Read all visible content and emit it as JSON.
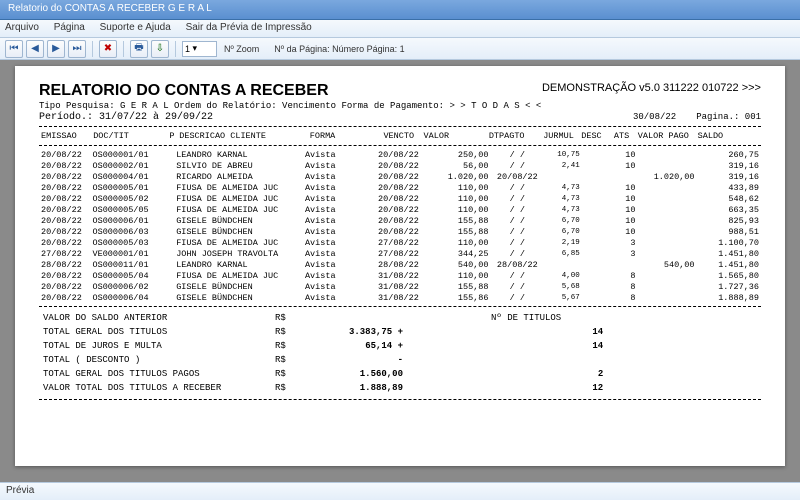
{
  "window": {
    "title": "Relatorio do CONTAS A RECEBER G E R A L"
  },
  "menu": {
    "arquivo": "Arquivo",
    "pagina": "Página",
    "suporte": "Suporte e Ajuda",
    "sair": "Sair da Prévia de Impressão"
  },
  "toolbar": {
    "zoom_value": "1",
    "zoom_label": "Nº Zoom",
    "page_label": "Nº da Página: Número Página: 1"
  },
  "report": {
    "title": "RELATORIO DO CONTAS A RECEBER",
    "demo": "DEMONSTRAÇÃO v5.0 311222 010722 >>>",
    "tipo": "Tipo Pesquisa: G E R A L    Ordem do Relatório: Vencimento   Forma de Pagamento: > > T O D A S < <",
    "periodo": "Período.: 31/07/22 à 29/09/22",
    "data": "30/08/22",
    "pagina": "Pagina.: 001",
    "headers": {
      "emissao": "EMISSAO",
      "doctit": "DOC/TIT",
      "p": "P",
      "descr": "DESCRICAO CLIENTE",
      "forma": "FORMA",
      "vencto": "VENCTO",
      "valor": "VALOR",
      "dtpagto": "DTPAGTO",
      "jurmul": "JURMUL",
      "desc": "DESC",
      "ats": "ATS",
      "valorpago": "VALOR PAGO",
      "saldo": "SALDO"
    },
    "rows": [
      {
        "emissao": "20/08/22",
        "doc": "OS000001/01",
        "cli": "LEANDRO KARNAL",
        "forma": "Avista",
        "vencto": "20/08/22",
        "valor": "250,00",
        "dtp": "/  /",
        "jur": "10,75",
        "ats": "10",
        "vp": "",
        "saldo": "260,75"
      },
      {
        "emissao": "20/08/22",
        "doc": "OS000002/01",
        "cli": "SILVIO DE ABREU",
        "forma": "Avista",
        "vencto": "20/08/22",
        "valor": "56,00",
        "dtp": "/  /",
        "jur": "2,41",
        "ats": "10",
        "vp": "",
        "saldo": "319,16"
      },
      {
        "emissao": "20/08/22",
        "doc": "OS000004/01",
        "cli": "RICARDO ALMEIDA",
        "forma": "Avista",
        "vencto": "20/08/22",
        "valor": "1.020,00",
        "dtp": "20/08/22",
        "jur": "",
        "ats": "",
        "vp": "1.020,00",
        "saldo": "319,16"
      },
      {
        "emissao": "20/08/22",
        "doc": "OS000005/01",
        "cli": "FIUSA DE ALMEIDA JUC",
        "forma": "Avista",
        "vencto": "20/08/22",
        "valor": "110,00",
        "dtp": "/  /",
        "jur": "4,73",
        "ats": "10",
        "vp": "",
        "saldo": "433,89"
      },
      {
        "emissao": "20/08/22",
        "doc": "OS000005/02",
        "cli": "FIUSA DE ALMEIDA JUC",
        "forma": "Avista",
        "vencto": "20/08/22",
        "valor": "110,00",
        "dtp": "/  /",
        "jur": "4,73",
        "ats": "10",
        "vp": "",
        "saldo": "548,62"
      },
      {
        "emissao": "20/08/22",
        "doc": "OS000005/05",
        "cli": "FIUSA DE ALMEIDA JUC",
        "forma": "Avista",
        "vencto": "20/08/22",
        "valor": "110,00",
        "dtp": "/  /",
        "jur": "4,73",
        "ats": "10",
        "vp": "",
        "saldo": "663,35"
      },
      {
        "emissao": "20/08/22",
        "doc": "OS000006/01",
        "cli": "GISELE BÜNDCHEN",
        "forma": "Avista",
        "vencto": "20/08/22",
        "valor": "155,88",
        "dtp": "/  /",
        "jur": "6,70",
        "ats": "10",
        "vp": "",
        "saldo": "825,93"
      },
      {
        "emissao": "20/08/22",
        "doc": "OS000006/03",
        "cli": "GISELE BÜNDCHEN",
        "forma": "Avista",
        "vencto": "20/08/22",
        "valor": "155,88",
        "dtp": "/  /",
        "jur": "6,70",
        "ats": "10",
        "vp": "",
        "saldo": "988,51"
      },
      {
        "emissao": "20/08/22",
        "doc": "OS000005/03",
        "cli": "FIUSA DE ALMEIDA JUC",
        "forma": "Avista",
        "vencto": "27/08/22",
        "valor": "110,00",
        "dtp": "/  /",
        "jur": "2,19",
        "ats": "3",
        "vp": "",
        "saldo": "1.100,70"
      },
      {
        "emissao": "27/08/22",
        "doc": "VE000001/01",
        "cli": "JOHN JOSEPH TRAVOLTA",
        "forma": "Avista",
        "vencto": "27/08/22",
        "valor": "344,25",
        "dtp": "/  /",
        "jur": "6,85",
        "ats": "3",
        "vp": "",
        "saldo": "1.451,80"
      },
      {
        "emissao": "28/08/22",
        "doc": "OS000011/01",
        "cli": "LEANDRO KARNAL",
        "forma": "Avista",
        "vencto": "28/08/22",
        "valor": "540,00",
        "dtp": "28/08/22",
        "jur": "",
        "ats": "",
        "vp": "540,00",
        "saldo": "1.451,80"
      },
      {
        "emissao": "20/08/22",
        "doc": "OS000005/04",
        "cli": "FIUSA DE ALMEIDA JUC",
        "forma": "Avista",
        "vencto": "31/08/22",
        "valor": "110,00",
        "dtp": "/  /",
        "jur": "4,00",
        "ats": "8",
        "vp": "",
        "saldo": "1.565,80"
      },
      {
        "emissao": "20/08/22",
        "doc": "OS000006/02",
        "cli": "GISELE BÜNDCHEN",
        "forma": "Avista",
        "vencto": "31/08/22",
        "valor": "155,88",
        "dtp": "/  /",
        "jur": "5,68",
        "ats": "8",
        "vp": "",
        "saldo": "1.727,36"
      },
      {
        "emissao": "20/08/22",
        "doc": "OS000006/04",
        "cli": "GISELE BÜNDCHEN",
        "forma": "Avista",
        "vencto": "31/08/22",
        "valor": "155,86",
        "dtp": "/  /",
        "jur": "5,67",
        "ats": "8",
        "vp": "",
        "saldo": "1.888,89"
      }
    ],
    "summary": {
      "s1l": "VALOR DO SALDO ANTERIOR",
      "s1c": "R$",
      "s1v": "",
      "s2l": "TOTAL GERAL DOS TITULOS",
      "s2c": "R$",
      "s2v": "3.383,75 +",
      "s3l": "TOTAL DE JUROS E MULTA",
      "s3c": "R$",
      "s3v": "65,14 +",
      "s4l": "TOTAL ( DESCONTO )",
      "s4c": "R$",
      "s4v": "-",
      "s5l": "TOTAL GERAL DOS TITULOS PAGOS",
      "s5c": "R$",
      "s5v": "1.560,00",
      "s6l": "VALOR TOTAL DOS TITULOS A RECEBER",
      "s6c": "R$",
      "s6v": "1.888,89",
      "ntit_label": "Nº DE TITULOS",
      "nt2": "14",
      "nt3": "14",
      "nt5": "2",
      "nt6": "12"
    }
  },
  "status": {
    "previa": "Prévia"
  }
}
